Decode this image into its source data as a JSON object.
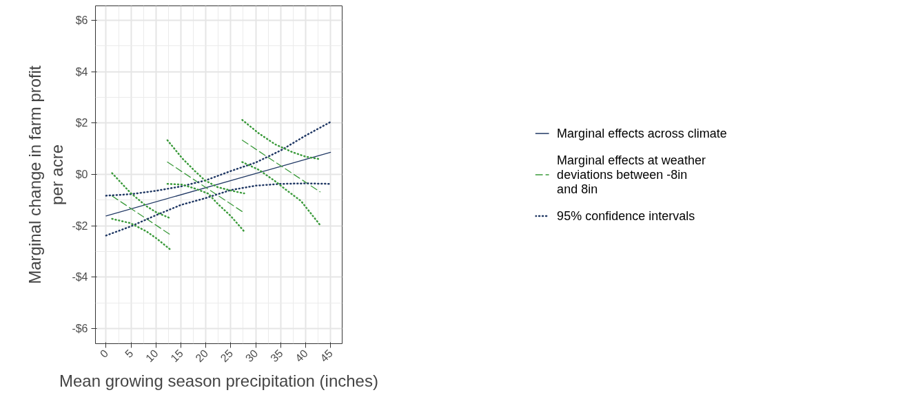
{
  "chart_data": {
    "type": "line",
    "xlabel": "Mean growing season precipitation (inches)",
    "ylabel": "Marginal change in farm profit\nper acre",
    "xlim": [
      -2.13,
      47.33
    ],
    "ylim": [
      -6.59,
      6.56
    ],
    "xticks": [
      0,
      5,
      10,
      15,
      20,
      25,
      30,
      35,
      40,
      45
    ],
    "yticks": [
      {
        "value": -6,
        "label": "-$6"
      },
      {
        "value": -4,
        "label": "-$4"
      },
      {
        "value": -2,
        "label": "-$2"
      },
      {
        "value": 0,
        "label": "$0"
      },
      {
        "value": 2,
        "label": "$2"
      },
      {
        "value": 4,
        "label": "$4"
      },
      {
        "value": 6,
        "label": "$6"
      }
    ],
    "grid": true,
    "legend": "right",
    "series": [
      {
        "name": "Marginal effects across climate",
        "color": "#203864",
        "line_style": "solid",
        "x": [
          0,
          45
        ],
        "values": [
          -1.62,
          0.86
        ]
      },
      {
        "name": "Marginal effects at weather\ndeviations between -8in\nand 8in",
        "color": "#3a9a3a",
        "line_style": "dashed",
        "x": [
          1.2,
          12.9
        ],
        "values": [
          -0.84,
          -2.35
        ]
      },
      {
        "color": "#3a9a3a",
        "line_style": "dashed",
        "x": [
          12.3,
          27.7
        ],
        "values": [
          0.48,
          -1.5
        ]
      },
      {
        "color": "#3a9a3a",
        "line_style": "dashed",
        "x": [
          27.3,
          42.9
        ],
        "values": [
          1.33,
          -0.68
        ]
      },
      {
        "name": "95% confidence intervals",
        "color": "#203864",
        "line_style": "dotted",
        "x": [
          0,
          5,
          10,
          15,
          20,
          25,
          30,
          35,
          40,
          45
        ],
        "values": [
          -0.83,
          -0.77,
          -0.64,
          -0.47,
          -0.23,
          0.13,
          0.46,
          0.93,
          1.51,
          2.04
        ]
      },
      {
        "color": "#203864",
        "line_style": "dotted",
        "x": [
          0,
          5,
          10,
          15,
          20,
          25,
          30,
          35,
          40,
          45
        ],
        "values": [
          -2.38,
          -2.02,
          -1.59,
          -1.19,
          -0.92,
          -0.61,
          -0.44,
          -0.37,
          -0.35,
          -0.37
        ]
      },
      {
        "color": "#3a9a3a",
        "line_style": "dotted",
        "x": [
          1.2,
          4.9,
          8.1,
          10.1,
          12.9
        ],
        "values": [
          0.05,
          -0.72,
          -1.24,
          -1.48,
          -1.71
        ]
      },
      {
        "color": "#3a9a3a",
        "line_style": "dotted",
        "x": [
          1.2,
          4.9,
          8.1,
          10.1,
          12.9
        ],
        "values": [
          -1.73,
          -1.9,
          -2.22,
          -2.49,
          -2.93
        ]
      },
      {
        "color": "#3a9a3a",
        "line_style": "dotted",
        "x": [
          12.3,
          15.3,
          17.8,
          19.8,
          22.4,
          25,
          27.7
        ],
        "values": [
          1.33,
          0.62,
          0.13,
          -0.23,
          -0.5,
          -0.63,
          -0.74
        ]
      },
      {
        "color": "#3a9a3a",
        "line_style": "dotted",
        "x": [
          12.3,
          15.3,
          17.8,
          20.5,
          22.4,
          25,
          27.6
        ],
        "values": [
          -0.37,
          -0.4,
          -0.55,
          -0.75,
          -1.15,
          -1.62,
          -2.2
        ]
      },
      {
        "color": "#3a9a3a",
        "line_style": "dotted",
        "x": [
          27.3,
          30.6,
          33.9,
          37.3,
          40,
          42.9
        ],
        "values": [
          2.12,
          1.6,
          1.17,
          0.87,
          0.69,
          0.59
        ]
      },
      {
        "color": "#3a9a3a",
        "line_style": "dotted",
        "x": [
          27.3,
          30.7,
          34,
          36,
          39.1,
          42.9
        ],
        "values": [
          0.48,
          0.17,
          -0.28,
          -0.59,
          -1.04,
          -1.97
        ]
      }
    ]
  }
}
